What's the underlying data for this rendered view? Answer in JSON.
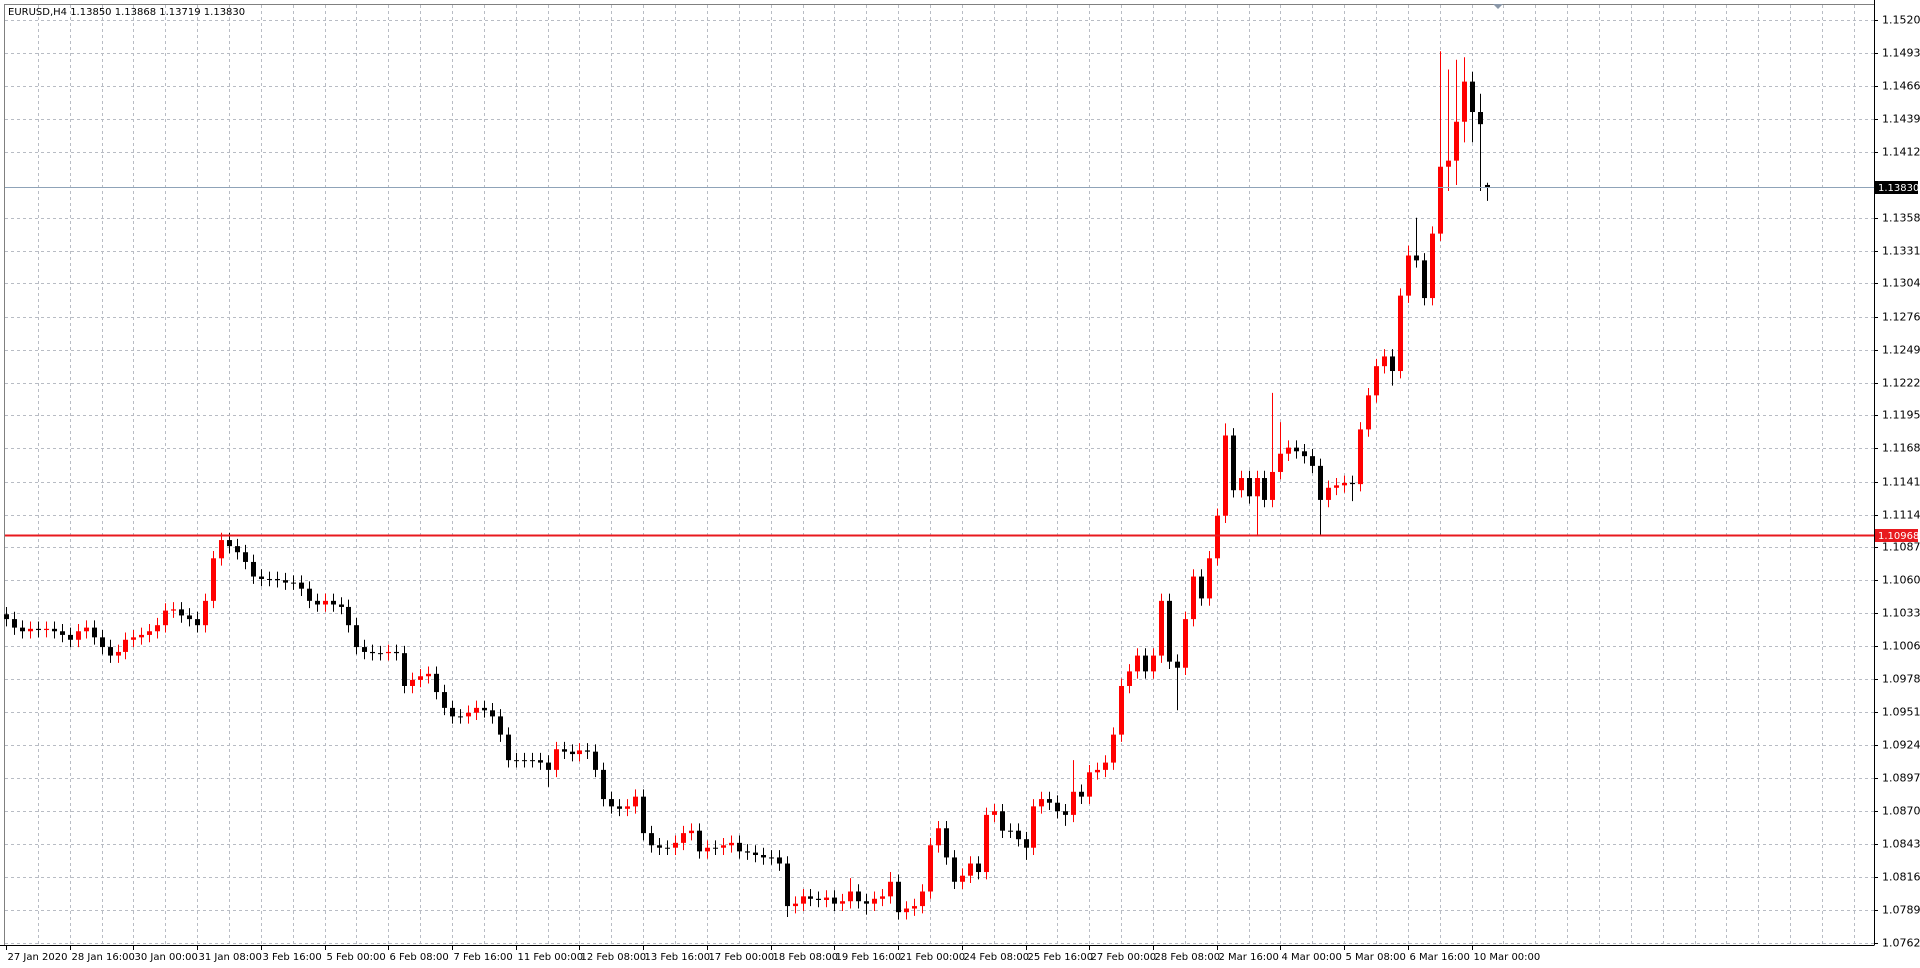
{
  "chart_data": {
    "type": "candlestick",
    "title": "EURUSD,H4  1.13850 1.13868 1.13719 1.13830",
    "up_color": "#ff0000",
    "down_color": "#000000",
    "grid": true,
    "ylim": [
      1.076,
      1.1533
    ],
    "yticks": [
      1.15205,
      1.14935,
      1.14665,
      1.14395,
      {
        "value": 1.1412,
        "label": "1.14120"
      },
      {
        "value": 1.1358,
        "label": "1.13580"
      },
      {
        "value": 1.1331,
        "label": "1.13310"
      },
      {
        "value": 1.1304,
        "label": "1.13040"
      },
      1.12765,
      1.12495,
      1.12225,
      1.11955,
      1.11685,
      {
        "value": 1.1141,
        "label": "1.11410"
      },
      {
        "value": 1.1114,
        "label": "1.11140"
      },
      {
        "value": 1.1087,
        "label": "1.10870"
      },
      {
        "value": 1.106,
        "label": "1.10600"
      },
      {
        "value": 1.1033,
        "label": "1.10330"
      },
      {
        "value": 1.1006,
        "label": "1.10060"
      },
      1.09785,
      1.09515,
      1.09245,
      1.08975,
      1.08705,
      {
        "value": 1.0843,
        "label": "1.08430"
      },
      {
        "value": 1.0816,
        "label": "1.08160"
      },
      {
        "value": 1.0789,
        "label": "1.07890"
      },
      {
        "value": 1.0762,
        "label": "1.07620"
      }
    ],
    "price_lines": [
      {
        "value": 1.1383,
        "label": "1.13830",
        "color": "#8fa3b8"
      },
      {
        "value": 1.10968,
        "label": "1.10968",
        "color": "#e8191e"
      }
    ],
    "categories": [
      "27 Jan 2020",
      null,
      null,
      null,
      null,
      null,
      null,
      null,
      "28 Jan 16:00",
      null,
      null,
      null,
      null,
      null,
      null,
      null,
      "30 Jan 00:00",
      null,
      null,
      null,
      null,
      null,
      null,
      null,
      "31 Jan 08:00",
      null,
      null,
      null,
      null,
      null,
      null,
      null,
      "3 Feb 16:00",
      null,
      null,
      null,
      null,
      null,
      null,
      null,
      "5 Feb 00:00",
      null,
      null,
      null,
      null,
      null,
      null,
      null,
      "6 Feb 08:00",
      null,
      null,
      null,
      null,
      null,
      null,
      null,
      "7 Feb 16:00",
      null,
      null,
      null,
      null,
      null,
      null,
      null,
      "11 Feb 00:00",
      null,
      null,
      null,
      null,
      null,
      null,
      null,
      "12 Feb 08:00",
      null,
      null,
      null,
      null,
      null,
      null,
      null,
      "13 Feb 16:00",
      null,
      null,
      null,
      null,
      null,
      null,
      null,
      "17 Feb 00:00",
      null,
      null,
      null,
      null,
      null,
      null,
      null,
      "18 Feb 08:00",
      null,
      null,
      null,
      null,
      null,
      null,
      null,
      "19 Feb 16:00",
      null,
      null,
      null,
      null,
      null,
      null,
      null,
      "21 Feb 00:00",
      null,
      null,
      null,
      null,
      null,
      null,
      null,
      "24 Feb 08:00",
      null,
      null,
      null,
      null,
      null,
      null,
      null,
      "25 Feb 16:00",
      null,
      null,
      null,
      null,
      null,
      null,
      null,
      "27 Feb 00:00",
      null,
      null,
      null,
      null,
      null,
      null,
      null,
      "28 Feb 08:00",
      null,
      null,
      null,
      null,
      null,
      null,
      null,
      "2 Mar 16:00",
      null,
      null,
      null,
      null,
      null,
      null,
      null,
      "4 Mar 00:00",
      null,
      null,
      null,
      null,
      null,
      null,
      null,
      "5 Mar 08:00",
      null,
      null,
      null,
      null,
      null,
      null,
      null,
      "6 Mar 16:00",
      null,
      null,
      null,
      null,
      null,
      null,
      null,
      "10 Mar 00:00",
      null,
      null
    ],
    "open": [
      1.1032,
      1.1028,
      1.1021,
      1.1018,
      1.102,
      1.1019,
      1.102,
      1.1018,
      1.1015,
      1.1011,
      1.1018,
      1.1021,
      1.1013,
      1.1005,
      1.0998,
      1.1001,
      1.1011,
      1.1013,
      1.1015,
      1.1018,
      1.1023,
      1.1035,
      1.1036,
      1.1031,
      1.1028,
      1.1023,
      1.1043,
      1.1078,
      1.1093,
      1.1088,
      1.1083,
      1.1075,
      1.1063,
      1.1061,
      1.1061,
      1.106,
      1.1058,
      1.1058,
      1.1053,
      1.1043,
      1.104,
      1.1043,
      1.104,
      1.1038,
      1.1023,
      1.1005,
      1.1001,
      1.1,
      1.1,
      1.1001,
      1.1,
      1.0973,
      1.0978,
      1.0981,
      1.0983,
      1.0968,
      1.0955,
      1.0948,
      1.0948,
      1.0951,
      1.0955,
      1.0953,
      1.0948,
      1.0933,
      1.0912,
      1.0912,
      1.0912,
      1.0912,
      1.091,
      1.0904,
      1.0921,
      1.0919,
      1.0917,
      1.092,
      1.0919,
      1.0904,
      1.088,
      1.0874,
      1.0872,
      1.0874,
      1.0882,
      1.0852,
      1.0842,
      1.084,
      1.084,
      1.0844,
      1.0852,
      1.0854,
      1.0837,
      1.084,
      1.084,
      1.0842,
      1.0844,
      1.0837,
      1.0836,
      1.0834,
      1.0832,
      1.0832,
      1.0827,
      1.0792,
      1.0794,
      1.08,
      1.0798,
      1.0797,
      1.0799,
      1.0794,
      1.0796,
      1.0804,
      1.0796,
      1.0794,
      1.0798,
      1.08,
      1.0812,
      1.0787,
      1.079,
      1.0792,
      1.0804,
      1.0842,
      1.0856,
      1.0832,
      1.0812,
      1.0817,
      1.0827,
      1.082,
      1.0867,
      1.087,
      1.0854,
      1.0854,
      1.0847,
      1.084,
      1.0874,
      1.088,
      1.0877,
      1.087,
      1.0867,
      1.0886,
      1.0882,
      1.0902,
      1.0904,
      1.091,
      1.0933,
      1.0973,
      1.0985,
      1.0998,
      1.0985,
      1.0998,
      1.1043,
      1.0993,
      1.0988,
      1.1028,
      1.1063,
      1.1045,
      1.1078,
      1.1113,
      1.1179,
      1.1134,
      1.1144,
      1.1129,
      1.1144,
      1.1126,
      1.1149,
      1.1164,
      1.1169,
      1.1166,
      1.1162,
      1.1154,
      1.1126,
      1.1136,
      1.1138,
      1.114,
      1.1139,
      1.1184,
      1.1212,
      1.1236,
      1.1244,
      1.1232,
      1.1294,
      1.1327,
      1.1323,
      1.1292,
      1.1345,
      1.14,
      1.1405,
      1.1437,
      1.147,
      1.1445,
      1.1385
    ],
    "high": [
      1.1038,
      1.1034,
      1.1027,
      1.1026,
      1.1026,
      1.1026,
      1.1026,
      1.1024,
      1.1021,
      1.1024,
      1.1027,
      1.1027,
      1.1019,
      1.1011,
      1.1007,
      1.1017,
      1.1019,
      1.1021,
      1.1024,
      1.1029,
      1.1041,
      1.1042,
      1.1042,
      1.1037,
      1.1034,
      1.1049,
      1.1084,
      1.1099,
      1.1099,
      1.1094,
      1.1089,
      1.1081,
      1.1069,
      1.1067,
      1.1067,
      1.1066,
      1.1064,
      1.1064,
      1.1059,
      1.1049,
      1.1049,
      1.1049,
      1.1046,
      1.1044,
      1.1029,
      1.1011,
      1.1007,
      1.1006,
      1.1007,
      1.1007,
      1.1006,
      1.0984,
      1.0987,
      1.0989,
      1.0989,
      1.0974,
      1.0961,
      1.0954,
      1.0957,
      1.0961,
      1.0961,
      1.0959,
      1.0954,
      1.0939,
      1.0918,
      1.0918,
      1.0918,
      1.0918,
      1.0916,
      1.0927,
      1.0927,
      1.0925,
      1.0926,
      1.0926,
      1.0925,
      1.091,
      1.0886,
      1.088,
      1.088,
      1.0888,
      1.0888,
      1.0858,
      1.0848,
      1.0846,
      1.085,
      1.0858,
      1.086,
      1.086,
      1.0846,
      1.0846,
      1.0848,
      1.085,
      1.085,
      1.0843,
      1.0842,
      1.084,
      1.0838,
      1.0838,
      1.0833,
      1.08,
      1.0806,
      1.0806,
      1.0804,
      1.0805,
      1.0805,
      1.0802,
      1.0815,
      1.081,
      1.0802,
      1.0804,
      1.0806,
      1.082,
      1.0818,
      1.0796,
      1.0798,
      1.081,
      1.0848,
      1.0862,
      1.0862,
      1.0838,
      1.0823,
      1.0833,
      1.0833,
      1.0873,
      1.0876,
      1.0876,
      1.086,
      1.086,
      1.0853,
      1.088,
      1.0886,
      1.0886,
      1.0883,
      1.0876,
      1.0912,
      1.0892,
      1.0908,
      1.091,
      1.0916,
      1.0939,
      1.0979,
      1.0991,
      1.1004,
      1.1004,
      1.1004,
      1.1049,
      1.1049,
      1.0999,
      1.1034,
      1.1069,
      1.1069,
      1.1084,
      1.1119,
      1.1189,
      1.1185,
      1.115,
      1.115,
      1.115,
      1.115,
      1.1214,
      1.119,
      1.1175,
      1.1175,
      1.1172,
      1.1168,
      1.116,
      1.1142,
      1.1144,
      1.1146,
      1.1146,
      1.119,
      1.1218,
      1.1242,
      1.125,
      1.125,
      1.13,
      1.1335,
      1.1358,
      1.1329,
      1.1351,
      1.1495,
      1.148,
      1.1488,
      1.149,
      1.1478,
      1.146,
      1.13868
    ],
    "low": [
      1.1022,
      1.1015,
      1.1012,
      1.1012,
      1.1013,
      1.1013,
      1.1012,
      1.1009,
      1.1005,
      1.1005,
      1.1012,
      1.1007,
      1.0999,
      1.0992,
      1.0992,
      1.0995,
      1.1005,
      1.1007,
      1.1009,
      1.1012,
      1.1017,
      1.1029,
      1.1025,
      1.1022,
      1.1017,
      1.1017,
      1.1037,
      1.1072,
      1.1082,
      1.1077,
      1.1069,
      1.1057,
      1.1055,
      1.1055,
      1.1054,
      1.1052,
      1.1052,
      1.1047,
      1.1037,
      1.1034,
      1.1034,
      1.1034,
      1.1032,
      1.1017,
      1.0999,
      1.0995,
      1.0994,
      1.0994,
      1.0994,
      1.0994,
      1.0967,
      1.0967,
      1.0972,
      1.0975,
      1.0962,
      1.0949,
      1.0942,
      1.0942,
      1.0942,
      1.0945,
      1.0947,
      1.0942,
      1.0927,
      1.0906,
      1.0906,
      1.0906,
      1.0906,
      1.0904,
      1.089,
      1.0898,
      1.0913,
      1.0911,
      1.0911,
      1.0913,
      1.0898,
      1.0874,
      1.0868,
      1.0866,
      1.0866,
      1.0868,
      1.0846,
      1.0836,
      1.0834,
      1.0834,
      1.0834,
      1.0838,
      1.0846,
      1.0831,
      1.0831,
      1.0834,
      1.0834,
      1.0836,
      1.0831,
      1.083,
      1.0828,
      1.0826,
      1.0826,
      1.0821,
      1.0783,
      1.0786,
      1.0788,
      1.0792,
      1.0791,
      1.0791,
      1.0788,
      1.0788,
      1.079,
      1.079,
      1.0785,
      1.0788,
      1.0792,
      1.0794,
      1.0781,
      1.0781,
      1.0784,
      1.0786,
      1.0798,
      1.0836,
      1.0826,
      1.0806,
      1.0806,
      1.0811,
      1.0814,
      1.0814,
      1.0861,
      1.0848,
      1.0848,
      1.0841,
      1.083,
      1.0834,
      1.0868,
      1.0871,
      1.0864,
      1.0858,
      1.0861,
      1.0876,
      1.0876,
      1.0896,
      1.0898,
      1.0904,
      1.0927,
      1.0967,
      1.0979,
      1.0979,
      1.0979,
      1.0992,
      1.0987,
      1.0953,
      1.0982,
      1.1022,
      1.1039,
      1.1039,
      1.1072,
      1.1107,
      1.1128,
      1.1128,
      1.1123,
      1.1097,
      1.112,
      1.112,
      1.1143,
      1.1158,
      1.116,
      1.1156,
      1.1148,
      1.1097,
      1.112,
      1.113,
      1.1132,
      1.1125,
      1.1133,
      1.1178,
      1.1206,
      1.123,
      1.122,
      1.1226,
      1.1288,
      1.1317,
      1.1286,
      1.1286,
      1.1339,
      1.138,
      1.1385,
      1.142,
      1.142,
      1.138,
      1.13719
    ],
    "close": [
      1.1028,
      1.1021,
      1.1018,
      1.102,
      1.1019,
      1.102,
      1.1018,
      1.1015,
      1.1011,
      1.1018,
      1.1021,
      1.1013,
      1.1005,
      1.0998,
      1.1001,
      1.1011,
      1.1013,
      1.1015,
      1.1018,
      1.1023,
      1.1035,
      1.1036,
      1.1031,
      1.1028,
      1.1023,
      1.1043,
      1.1078,
      1.1093,
      1.1088,
      1.1083,
      1.1075,
      1.1063,
      1.1061,
      1.1061,
      1.106,
      1.1058,
      1.1058,
      1.1053,
      1.1043,
      1.104,
      1.1043,
      1.104,
      1.1038,
      1.1023,
      1.1005,
      1.1001,
      1.1,
      1.1,
      1.1001,
      1.1,
      1.0973,
      1.0978,
      1.0981,
      1.0983,
      1.0968,
      1.0955,
      1.0948,
      1.0948,
      1.0951,
      1.0955,
      1.0953,
      1.0948,
      1.0933,
      1.0912,
      1.0912,
      1.0912,
      1.0912,
      1.091,
      1.0904,
      1.0921,
      1.0919,
      1.0917,
      1.092,
      1.0919,
      1.0904,
      1.088,
      1.0874,
      1.0872,
      1.0874,
      1.0882,
      1.0852,
      1.0842,
      1.084,
      1.084,
      1.0844,
      1.0852,
      1.0854,
      1.0837,
      1.084,
      1.084,
      1.0842,
      1.0844,
      1.0837,
      1.0836,
      1.0834,
      1.0832,
      1.0832,
      1.0827,
      1.0792,
      1.0794,
      1.08,
      1.0798,
      1.0797,
      1.0799,
      1.0794,
      1.0796,
      1.0804,
      1.0796,
      1.0794,
      1.0798,
      1.08,
      1.0812,
      1.0787,
      1.079,
      1.0792,
      1.0804,
      1.0842,
      1.0856,
      1.0832,
      1.0812,
      1.0817,
      1.0827,
      1.082,
      1.0867,
      1.087,
      1.0854,
      1.0854,
      1.0847,
      1.084,
      1.0874,
      1.088,
      1.0877,
      1.087,
      1.0867,
      1.0886,
      1.0882,
      1.0902,
      1.0904,
      1.091,
      1.0933,
      1.0973,
      1.0985,
      1.0998,
      1.0985,
      1.0998,
      1.1043,
      1.0993,
      1.0988,
      1.1028,
      1.1063,
      1.1045,
      1.1078,
      1.1113,
      1.1179,
      1.1134,
      1.1144,
      1.1129,
      1.1144,
      1.1126,
      1.1149,
      1.1164,
      1.1169,
      1.1166,
      1.1162,
      1.1154,
      1.1126,
      1.1136,
      1.1138,
      1.114,
      1.1139,
      1.1184,
      1.1212,
      1.1236,
      1.1244,
      1.1232,
      1.1294,
      1.1327,
      1.1323,
      1.1292,
      1.1345,
      1.14,
      1.1405,
      1.1437,
      1.147,
      1.1445,
      1.1435,
      1.1383
    ]
  }
}
